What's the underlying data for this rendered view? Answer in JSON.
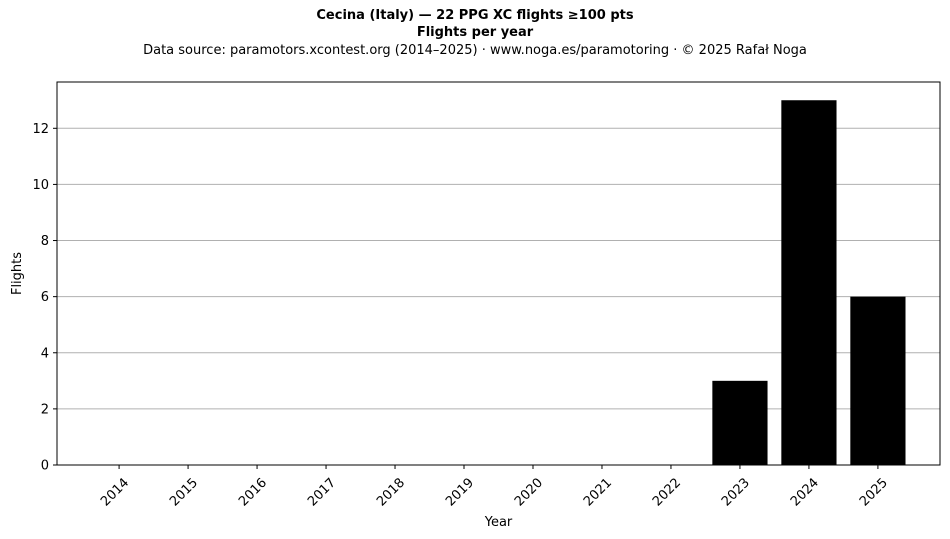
{
  "title": "Cecina (Italy)  —  22 PPG XC flights ≥100 pts",
  "subtitle": "Flights per year",
  "source_line": "Data source: paramotors.xcontest.org (2014–2025)  ·  www.noga.es/paramotoring  ·  © 2025 Rafał Noga",
  "chart_data": {
    "type": "bar",
    "categories": [
      "2014",
      "2015",
      "2016",
      "2017",
      "2018",
      "2019",
      "2020",
      "2021",
      "2022",
      "2023",
      "2024",
      "2025"
    ],
    "values": [
      0,
      0,
      0,
      0,
      0,
      0,
      0,
      0,
      0,
      3,
      13,
      6
    ],
    "xlabel": "Year",
    "ylabel": "Flights",
    "ylim": [
      0,
      13.65
    ],
    "yticks": [
      0,
      2,
      4,
      6,
      8,
      10,
      12
    ],
    "grid": "horizontal",
    "bar_color": "#000000",
    "grid_color": "#b0b0b0",
    "xtick_rotation": 45
  }
}
